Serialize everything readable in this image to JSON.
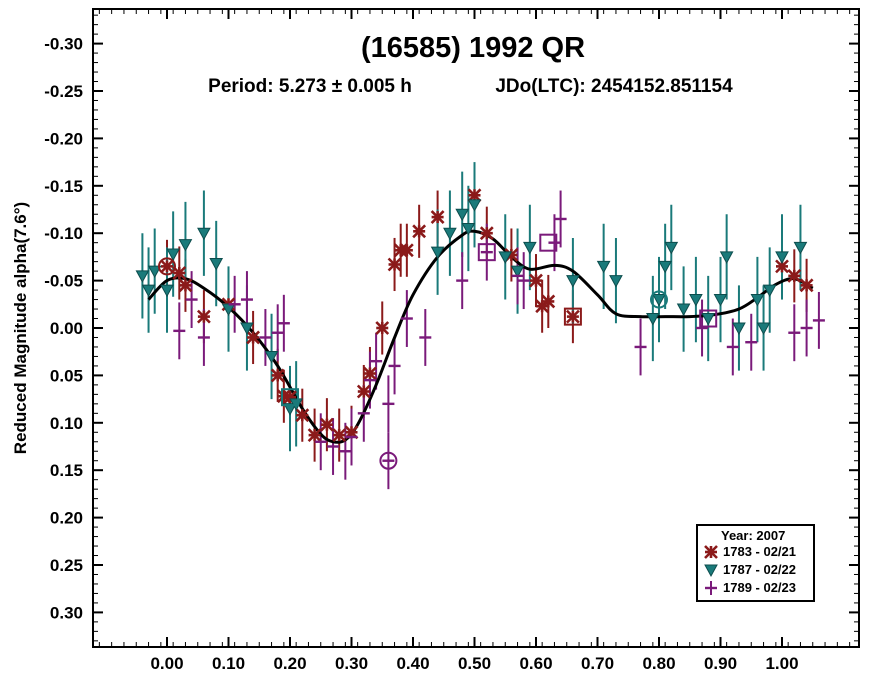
{
  "chart_data": {
    "type": "scatter",
    "title": "(16585) 1992 QR",
    "period_text": "Period: 5.273 ± 0.005 h",
    "epoch_text": "JDo(LTC): 2454152.851154",
    "ylabel": "Reduced Magnitude alpha(7.6°)",
    "xlabel": "",
    "xlim": [
      -0.12,
      1.12
    ],
    "ylim": [
      0.34,
      -0.34
    ],
    "y_inverted": true,
    "x_ticks": [
      "0.00",
      "0.10",
      "0.20",
      "0.30",
      "0.40",
      "0.50",
      "0.60",
      "0.70",
      "0.80",
      "0.90",
      "1.00"
    ],
    "y_ticks": [
      "-0.30",
      "-0.25",
      "-0.20",
      "-0.15",
      "-0.10",
      "-0.05",
      "0.00",
      "0.05",
      "0.10",
      "0.15",
      "0.20",
      "0.25",
      "0.30"
    ],
    "x_tick_values": [
      0,
      0.1,
      0.2,
      0.3,
      0.4,
      0.5,
      0.6,
      0.7,
      0.8,
      0.9,
      1.0
    ],
    "y_tick_values": [
      -0.3,
      -0.25,
      -0.2,
      -0.15,
      -0.1,
      -0.05,
      0,
      0.05,
      0.1,
      0.15,
      0.2,
      0.25,
      0.3
    ],
    "legend": {
      "title": "Year: 2007",
      "position": "bottom-right",
      "entries": [
        {
          "label": "1783 - 02/21",
          "marker": "asterisk",
          "color": "#8b1a1a"
        },
        {
          "label": "1787 - 02/22",
          "marker": "triangle-down",
          "color": "#1a7a7a"
        },
        {
          "label": "1789 - 02/23",
          "marker": "plus",
          "color": "#7a1a7a"
        }
      ]
    },
    "fit_curve": {
      "color": "#000000",
      "points": [
        [
          -0.03,
          -0.03
        ],
        [
          0.0,
          -0.05
        ],
        [
          0.03,
          -0.052
        ],
        [
          0.06,
          -0.042
        ],
        [
          0.1,
          -0.022
        ],
        [
          0.14,
          0.005
        ],
        [
          0.18,
          0.04
        ],
        [
          0.22,
          0.085
        ],
        [
          0.25,
          0.112
        ],
        [
          0.27,
          0.12
        ],
        [
          0.29,
          0.118
        ],
        [
          0.31,
          0.102
        ],
        [
          0.34,
          0.06
        ],
        [
          0.37,
          0.01
        ],
        [
          0.4,
          -0.035
        ],
        [
          0.44,
          -0.075
        ],
        [
          0.48,
          -0.098
        ],
        [
          0.5,
          -0.102
        ],
        [
          0.53,
          -0.094
        ],
        [
          0.56,
          -0.075
        ],
        [
          0.59,
          -0.062
        ],
        [
          0.63,
          -0.066
        ],
        [
          0.66,
          -0.06
        ],
        [
          0.7,
          -0.035
        ],
        [
          0.73,
          -0.015
        ],
        [
          0.77,
          -0.012
        ],
        [
          0.81,
          -0.012
        ],
        [
          0.85,
          -0.012
        ],
        [
          0.89,
          -0.014
        ],
        [
          0.93,
          -0.02
        ],
        [
          0.96,
          -0.032
        ],
        [
          0.99,
          -0.046
        ],
        [
          1.02,
          -0.052
        ],
        [
          1.05,
          -0.042
        ]
      ]
    },
    "series": [
      {
        "name": "1783 - 02/21",
        "marker": "asterisk",
        "color": "#8b1a1a",
        "err": 0.028,
        "points": [
          [
            0.0,
            -0.065
          ],
          [
            0.02,
            -0.058
          ],
          [
            0.03,
            -0.045
          ],
          [
            0.06,
            -0.012
          ],
          [
            0.1,
            -0.025
          ],
          [
            0.14,
            0.01
          ],
          [
            0.18,
            0.05
          ],
          [
            0.19,
            0.072
          ],
          [
            0.2,
            0.073
          ],
          [
            0.22,
            0.092
          ],
          [
            0.24,
            0.113
          ],
          [
            0.26,
            0.102
          ],
          [
            0.28,
            0.113
          ],
          [
            0.3,
            0.11
          ],
          [
            0.32,
            0.067
          ],
          [
            0.33,
            0.048
          ],
          [
            0.35,
            0.0
          ],
          [
            0.37,
            -0.067
          ],
          [
            0.38,
            -0.082
          ],
          [
            0.39,
            -0.082
          ],
          [
            0.41,
            -0.102
          ],
          [
            0.44,
            -0.117
          ],
          [
            0.5,
            -0.14
          ],
          [
            0.52,
            -0.1
          ],
          [
            0.56,
            -0.077
          ],
          [
            0.6,
            -0.05
          ],
          [
            0.61,
            -0.023
          ],
          [
            0.62,
            -0.028
          ],
          [
            0.66,
            -0.012
          ],
          [
            1.0,
            -0.065
          ],
          [
            1.02,
            -0.055
          ],
          [
            1.04,
            -0.045
          ]
        ]
      },
      {
        "name": "1787 - 02/22",
        "marker": "triangle-down",
        "color": "#1a7a7a",
        "err": 0.045,
        "points": [
          [
            -0.04,
            -0.055
          ],
          [
            -0.03,
            -0.04
          ],
          [
            -0.02,
            -0.06
          ],
          [
            0.0,
            -0.04
          ],
          [
            0.01,
            -0.078
          ],
          [
            0.03,
            -0.088
          ],
          [
            0.06,
            -0.1
          ],
          [
            0.08,
            -0.068
          ],
          [
            0.1,
            -0.02
          ],
          [
            0.13,
            0.0
          ],
          [
            0.17,
            0.03
          ],
          [
            0.2,
            0.085
          ],
          [
            0.21,
            0.08
          ],
          [
            0.44,
            -0.08
          ],
          [
            0.46,
            -0.1
          ],
          [
            0.48,
            -0.12
          ],
          [
            0.49,
            -0.105
          ],
          [
            0.5,
            -0.13
          ],
          [
            0.55,
            -0.075
          ],
          [
            0.57,
            -0.06
          ],
          [
            0.59,
            -0.085
          ],
          [
            0.66,
            -0.05
          ],
          [
            0.71,
            -0.065
          ],
          [
            0.73,
            -0.05
          ],
          [
            0.79,
            -0.01
          ],
          [
            0.8,
            -0.03
          ],
          [
            0.81,
            -0.065
          ],
          [
            0.82,
            -0.085
          ],
          [
            0.84,
            -0.02
          ],
          [
            0.86,
            -0.03
          ],
          [
            0.88,
            -0.01
          ],
          [
            0.9,
            -0.03
          ],
          [
            0.91,
            -0.075
          ],
          [
            0.93,
            0.0
          ],
          [
            0.96,
            -0.03
          ],
          [
            0.97,
            0.0
          ],
          [
            0.98,
            -0.04
          ],
          [
            1.0,
            -0.075
          ],
          [
            1.03,
            -0.085
          ]
        ]
      },
      {
        "name": "1789 - 02/23",
        "marker": "plus",
        "color": "#7a1a7a",
        "err": 0.03,
        "points": [
          [
            0.02,
            0.003
          ],
          [
            0.04,
            -0.03
          ],
          [
            0.06,
            0.01
          ],
          [
            0.11,
            -0.025
          ],
          [
            0.13,
            -0.03
          ],
          [
            0.16,
            0.01
          ],
          [
            0.18,
            0.005
          ],
          [
            0.19,
            -0.005
          ],
          [
            0.25,
            0.12
          ],
          [
            0.27,
            0.125
          ],
          [
            0.29,
            0.13
          ],
          [
            0.3,
            0.115
          ],
          [
            0.32,
            0.09
          ],
          [
            0.33,
            0.055
          ],
          [
            0.34,
            0.035
          ],
          [
            0.36,
            0.08
          ],
          [
            0.36,
            0.14
          ],
          [
            0.37,
            0.04
          ],
          [
            0.39,
            -0.01
          ],
          [
            0.42,
            0.01
          ],
          [
            0.48,
            -0.05
          ],
          [
            0.52,
            -0.08
          ],
          [
            0.57,
            -0.055
          ],
          [
            0.58,
            -0.05
          ],
          [
            0.63,
            -0.09
          ],
          [
            0.64,
            -0.115
          ],
          [
            0.77,
            0.02
          ],
          [
            0.87,
            0.0
          ],
          [
            0.92,
            0.02
          ],
          [
            0.95,
            0.015
          ],
          [
            1.02,
            0.005
          ],
          [
            1.04,
            0.0
          ],
          [
            1.06,
            -0.008
          ]
        ]
      }
    ],
    "highlighted_points": [
      {
        "x": 0.0,
        "y": -0.065,
        "shape": "circle",
        "color": "#8b1a1a"
      },
      {
        "x": 0.2,
        "y": 0.073,
        "shape": "square",
        "color": "#1a7a7a"
      },
      {
        "x": 0.36,
        "y": 0.14,
        "shape": "circle",
        "color": "#7a1a7a"
      },
      {
        "x": 0.52,
        "y": -0.08,
        "shape": "square",
        "color": "#7a1a7a"
      },
      {
        "x": 0.62,
        "y": -0.09,
        "shape": "square",
        "color": "#7a1a7a"
      },
      {
        "x": 0.66,
        "y": -0.012,
        "shape": "square",
        "color": "#8b1a1a"
      },
      {
        "x": 0.8,
        "y": -0.03,
        "shape": "circle",
        "color": "#1a7a7a"
      },
      {
        "x": 0.88,
        "y": -0.01,
        "shape": "square",
        "color": "#7a1a7a"
      }
    ]
  }
}
